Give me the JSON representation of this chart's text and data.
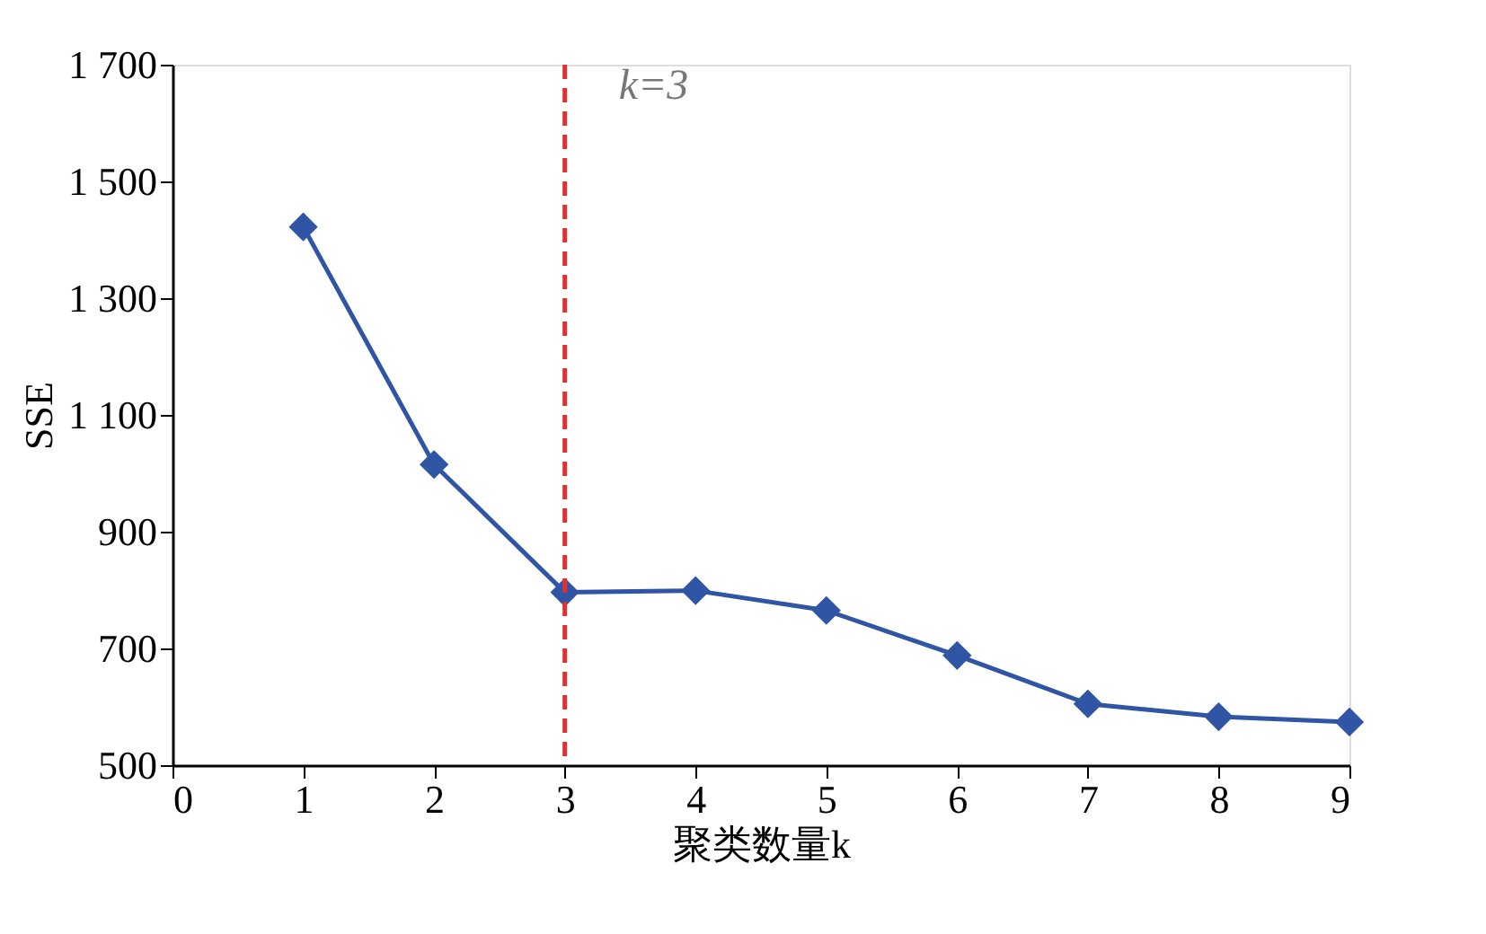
{
  "chart_data": {
    "type": "line",
    "xlabel": "聚类数量k",
    "ylabel": "SSE",
    "x": [
      1,
      2,
      3,
      4,
      5,
      6,
      7,
      8,
      9
    ],
    "series": [
      {
        "color": "#2f55a4",
        "values": [
          1422,
          1015,
          796,
          799,
          765,
          688,
          605,
          583,
          574
        ]
      }
    ],
    "xlim": [
      0,
      9
    ],
    "xticks": [
      0,
      1,
      2,
      3,
      4,
      5,
      6,
      7,
      8,
      9
    ],
    "ylim": [
      500,
      1700
    ],
    "yticks": [
      {
        "value": 500,
        "label": "500"
      },
      {
        "value": 700,
        "label": "700"
      },
      {
        "value": 900,
        "label": "900"
      },
      {
        "value": 1100,
        "label": "1 100"
      },
      {
        "value": 1300,
        "label": "1 300"
      },
      {
        "value": 1500,
        "label": "1 500"
      },
      {
        "value": 1700,
        "label": "1 700"
      }
    ],
    "ref_lines": [
      {
        "axis": "x",
        "value": 3,
        "label": "k=3",
        "color": "#e03030",
        "line_style": "dashed"
      }
    ],
    "marker": "diamond",
    "line_style": "solid",
    "grid": false
  }
}
